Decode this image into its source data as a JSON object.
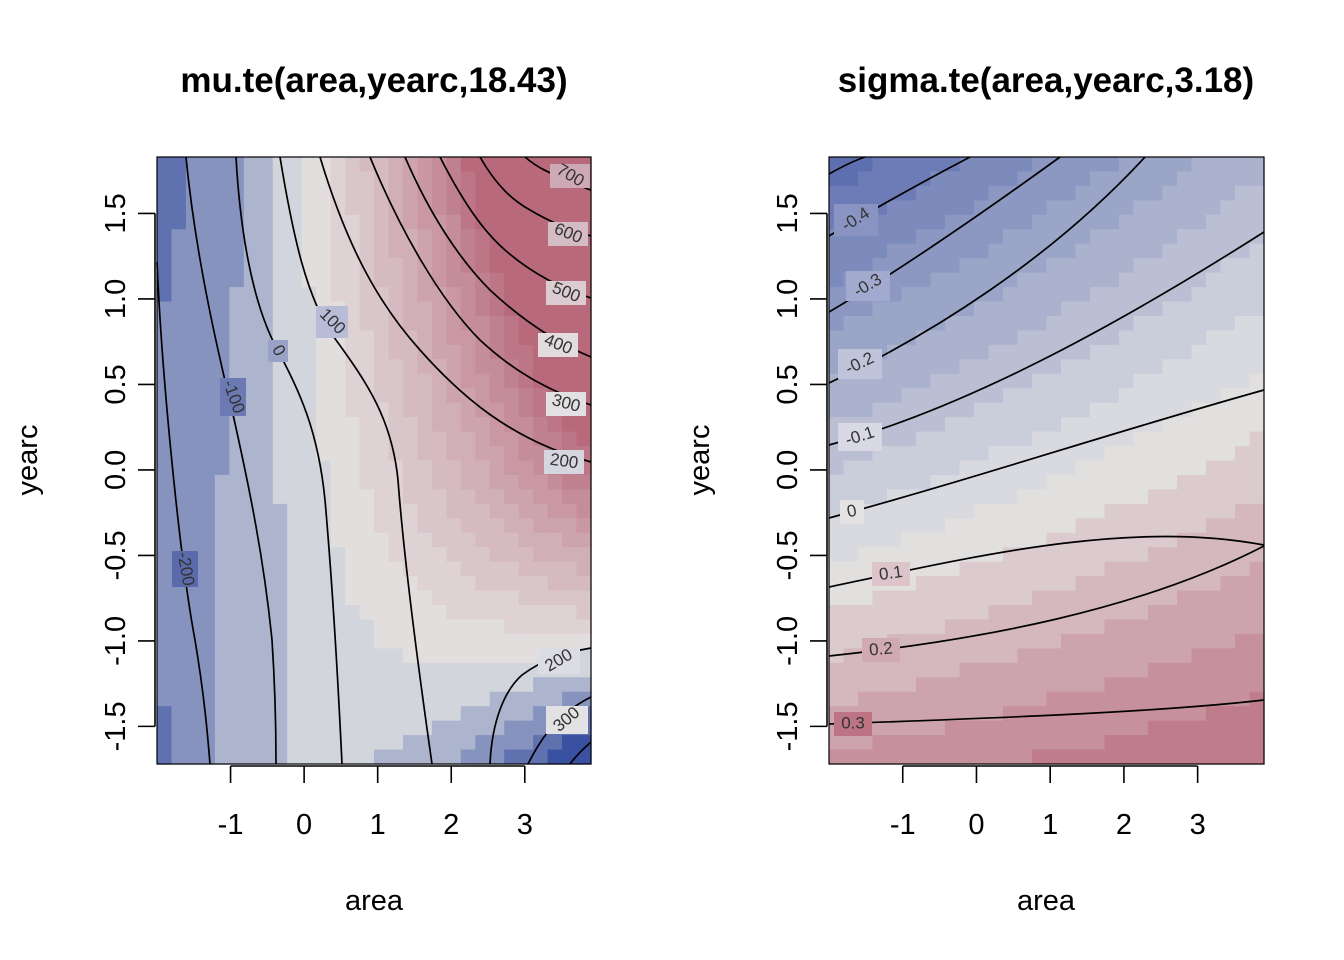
{
  "chart_data": [
    {
      "type": "heatmap",
      "title": "mu.te(area,yearc,18.43)",
      "xlabel": "area",
      "ylabel": "yearc",
      "xlim": [
        -2.0,
        3.9
      ],
      "ylim": [
        -1.72,
        1.83
      ],
      "xticks": [
        -1,
        0,
        1,
        2,
        3
      ],
      "xtick_labels": [
        "-1",
        "0",
        "1",
        "2",
        "3"
      ],
      "yticks": [
        -1.5,
        -1.0,
        -0.5,
        0.0,
        0.5,
        1.0,
        1.5
      ],
      "ytick_labels": [
        "-1.5",
        "-1.0",
        "-0.5",
        "0.0",
        "0.5",
        "1.0",
        "1.5"
      ],
      "contour_levels": [
        "-200",
        "-100",
        "0",
        "100",
        "200",
        "300",
        "400",
        "500",
        "600",
        "700",
        "200",
        "300"
      ],
      "color_range": [
        -320,
        760
      ],
      "colors": {
        "low": "#3a50a0",
        "mid": "#e4e4e4",
        "high": "#b86a7b"
      }
    },
    {
      "type": "heatmap",
      "title": "sigma.te(area,yearc,3.18)",
      "xlabel": "area",
      "ylabel": "yearc",
      "xlim": [
        -2.0,
        3.9
      ],
      "ylim": [
        -1.72,
        1.83
      ],
      "xticks": [
        -1,
        0,
        1,
        2,
        3
      ],
      "xtick_labels": [
        "-1",
        "0",
        "1",
        "2",
        "3"
      ],
      "yticks": [
        -1.5,
        -1.0,
        -0.5,
        0.0,
        0.5,
        1.0,
        1.5
      ],
      "ytick_labels": [
        "-1.5",
        "-1.0",
        "-0.5",
        "0.0",
        "0.5",
        "1.0",
        "1.5"
      ],
      "contour_levels": [
        "-0.4",
        "-0.3",
        "-0.2",
        "-0.1",
        "0",
        "0.1",
        "0.2",
        "0.3"
      ],
      "color_range": [
        -0.5,
        0.36
      ],
      "colors": {
        "low": "#5e6fb0",
        "mid": "#e4e4e4",
        "high": "#b86a7b"
      }
    }
  ]
}
